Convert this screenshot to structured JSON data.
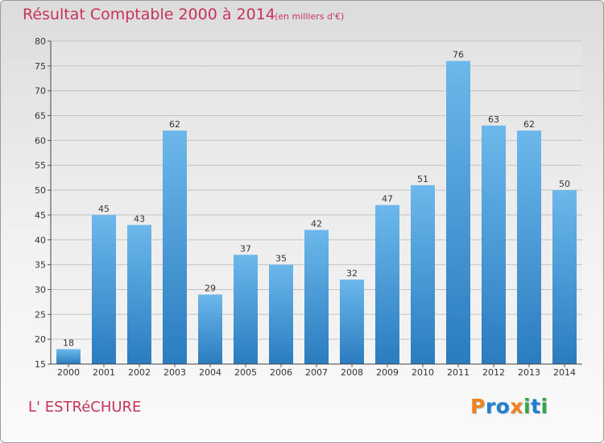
{
  "title": "Résultat Comptable 2000 à 2014",
  "subtitle": "(en milliers d'€)",
  "commune": "L' ESTRéCHURE",
  "logo": {
    "letters": [
      "P",
      "r",
      "o",
      "x",
      "i",
      "t",
      "i"
    ],
    "colors": [
      "#f0821e",
      "#1f7fd6",
      "#1f7fd6",
      "#f0821e",
      "#2fa84a",
      "#1f7fd6",
      "#2fa84a"
    ]
  },
  "colors": {
    "bar_light": "#6cb8ec",
    "bar_dark": "#2a7cbf",
    "title": "#c7335a"
  },
  "chart_data": {
    "type": "bar",
    "title": "Résultat Comptable 2000 à 2014",
    "subtitle": "(en milliers d'€)",
    "categories": [
      "2000",
      "2001",
      "2002",
      "2003",
      "2004",
      "2005",
      "2006",
      "2007",
      "2008",
      "2009",
      "2010",
      "2011",
      "2012",
      "2013",
      "2014"
    ],
    "values": [
      18,
      45,
      43,
      62,
      29,
      37,
      35,
      42,
      32,
      47,
      51,
      76,
      63,
      62,
      50
    ],
    "ylim": [
      15,
      80
    ],
    "yticks": [
      15,
      20,
      25,
      30,
      35,
      40,
      45,
      50,
      55,
      60,
      65,
      70,
      75,
      80
    ],
    "grid": true,
    "data_labels": true
  }
}
